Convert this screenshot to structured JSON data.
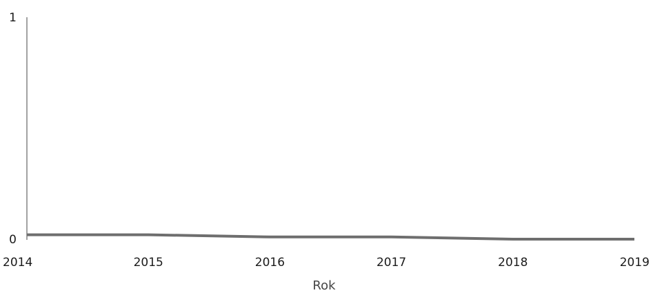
{
  "chart_data": {
    "type": "line",
    "title": "",
    "xlabel": "Rok",
    "ylabel": "",
    "x": [
      2014,
      2015,
      2016,
      2017,
      2018,
      2019
    ],
    "series": [
      {
        "values": [
          0.02,
          0.02,
          0.01,
          0.01,
          0.0,
          0.0
        ]
      }
    ],
    "xlim": [
      2014,
      2019
    ],
    "ylim": [
      0,
      1
    ],
    "x_ticks": [
      "2014",
      "2015",
      "2016",
      "2017",
      "2018",
      "2019"
    ],
    "y_ticks": [
      "0",
      "1"
    ],
    "grid": false,
    "legend": "none",
    "colors": {
      "line": "#6e6e6e",
      "axis": "#444444"
    }
  }
}
